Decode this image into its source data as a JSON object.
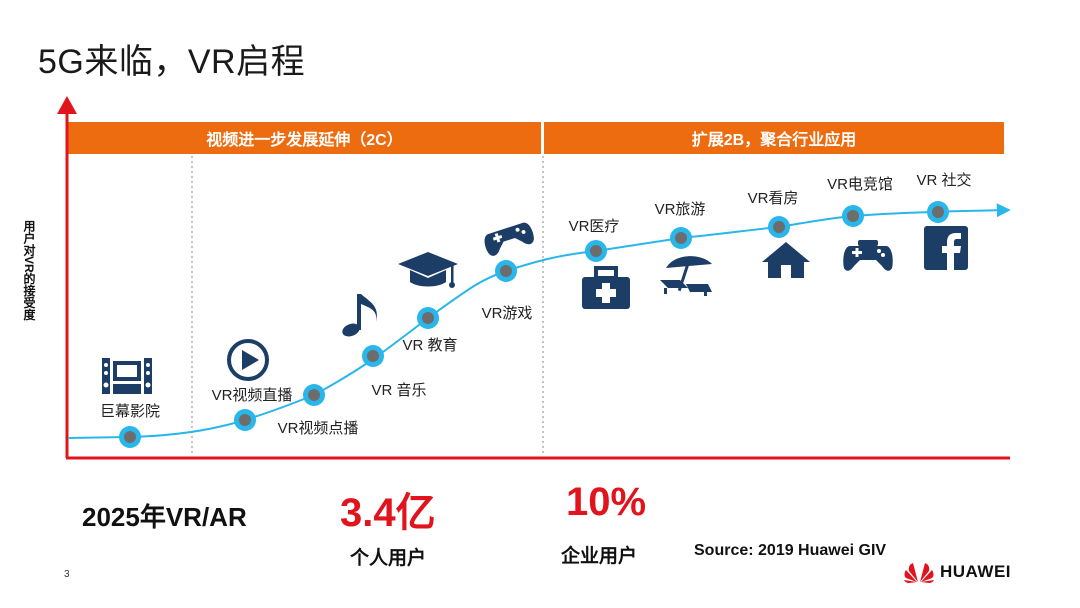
{
  "slide": {
    "title": "5G来临，VR启程",
    "page_number": "3"
  },
  "bands": {
    "left": "视频进一步发展延伸（2C）",
    "right": "扩展2B，聚合行业应用"
  },
  "y_axis_label": "用户对VR的接受度",
  "chart_data": {
    "type": "line",
    "ylabel": "用户对VR的接受度",
    "points": [
      {
        "label": "巨幕影院",
        "icon": "cinema-icon"
      },
      {
        "label": "VR视频直播",
        "icon": "play-icon"
      },
      {
        "label": "VR视频点播",
        "icon": ""
      },
      {
        "label": "VR 音乐",
        "icon": "music-note-icon"
      },
      {
        "label": "VR 教育",
        "icon": "graduation-cap-icon"
      },
      {
        "label": "VR游戏",
        "icon": "gamepad-icon"
      },
      {
        "label": "VR医疗",
        "icon": "medical-kit-icon"
      },
      {
        "label": "VR旅游",
        "icon": "beach-umbrella-icon"
      },
      {
        "label": "VR看房",
        "icon": "house-icon"
      },
      {
        "label": "VR电竞馆",
        "icon": "game-controller-icon"
      },
      {
        "label": "VR 社交",
        "icon": "facebook-icon"
      }
    ]
  },
  "stats": {
    "year_label": "2025年VR/AR",
    "consumer_value": "3.4亿",
    "consumer_label": "个人用户",
    "enterprise_value": "10%",
    "enterprise_label": "企业用户"
  },
  "source": "Source: 2019 Huawei GIV",
  "brand": {
    "name": "HUAWEI",
    "accent": "#e1141e",
    "band_color": "#ec6c0f",
    "curve_color": "#29b6ea"
  }
}
